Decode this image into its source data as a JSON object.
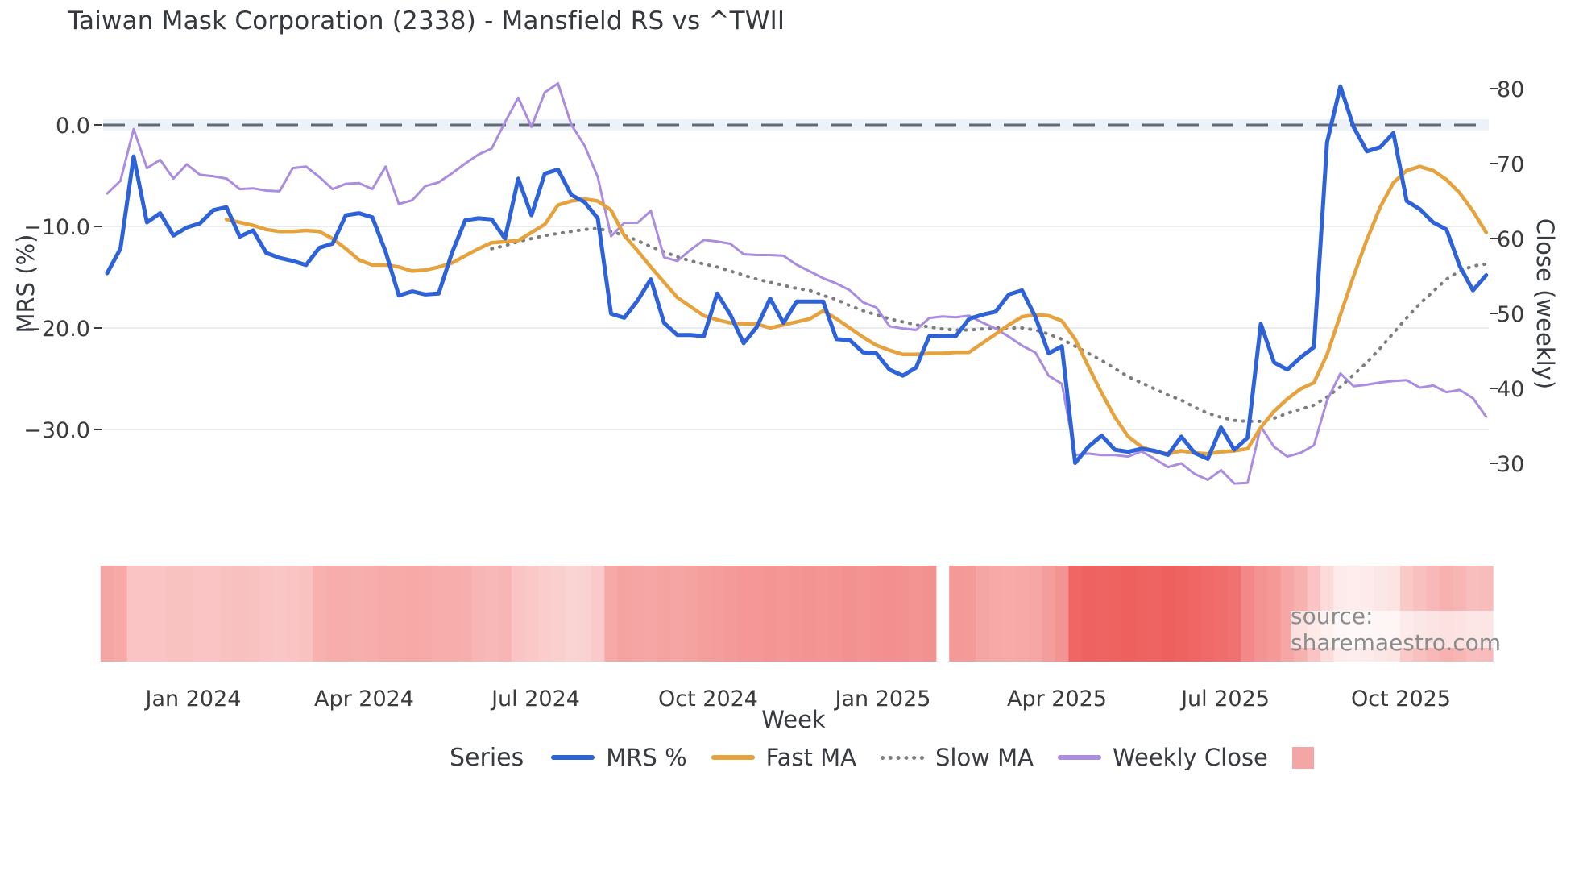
{
  "title": "Taiwan Mask Corporation (2338) - Mansfield RS vs ^TWII",
  "watermark": "source: sharemaestro.com",
  "legend": {
    "label": "Series",
    "items": [
      {
        "name": "MRS %",
        "style": "solid",
        "color": "#2e62d8"
      },
      {
        "name": "Fast MA",
        "style": "solid",
        "color": "#e6a23c"
      },
      {
        "name": "Slow MA",
        "style": "dotted",
        "color": "#7d7d7d"
      },
      {
        "name": "Weekly Close",
        "style": "solid",
        "color": "#aa8ce0"
      },
      {
        "name": "",
        "style": "square",
        "color": "#f4a6a6"
      }
    ]
  },
  "chart_data": {
    "type": "line",
    "title": "Taiwan Mask Corporation (2338) - Mansfield RS vs ^TWII",
    "xlabel": "Week",
    "x_ticks": [
      {
        "label": "Jan 2024",
        "week": 6.5
      },
      {
        "label": "Apr 2024",
        "week": 19.4
      },
      {
        "label": "Jul 2024",
        "week": 32.3
      },
      {
        "label": "Oct 2024",
        "week": 45.3
      },
      {
        "label": "Jan 2025",
        "week": 58.5
      },
      {
        "label": "Apr 2025",
        "week": 71.6
      },
      {
        "label": "Jul 2025",
        "week": 84.3
      },
      {
        "label": "Oct 2025",
        "week": 97.6
      }
    ],
    "y_left": {
      "label": "MRS (%)",
      "tick_values": [
        0,
        -10,
        -20,
        -30
      ],
      "tick_labels": [
        "0.0",
        "−10.0",
        "−20.0",
        "−30.0"
      ],
      "range": [
        -36,
        4.5
      ]
    },
    "y_right": {
      "label": "Close (weekly)",
      "tick_values": [
        80,
        70,
        60,
        50,
        40,
        30
      ],
      "tick_labels": [
        "80",
        "70",
        "60",
        "50",
        "40",
        "30"
      ],
      "range": [
        26,
        82
      ]
    },
    "zero_line": 0.0,
    "grid": true,
    "legend_position": "bottom",
    "series": [
      {
        "name": "MRS %",
        "axis": "left",
        "color": "#2e62d8",
        "style": "solid",
        "values": [
          -14.6,
          -12.2,
          -3.1,
          -9.6,
          -8.7,
          -10.9,
          -10.1,
          -9.7,
          -8.4,
          -8.1,
          -11.0,
          -10.4,
          -12.6,
          -13.1,
          -13.4,
          -13.8,
          -12.1,
          -11.7,
          -8.9,
          -8.7,
          -9.1,
          -12.5,
          -16.8,
          -16.4,
          -16.7,
          -16.6,
          -12.6,
          -9.4,
          -9.2,
          -9.3,
          -11.2,
          -5.3,
          -8.9,
          -4.8,
          -4.4,
          -6.9,
          -7.6,
          -9.2,
          -18.6,
          -19.0,
          -17.3,
          -15.2,
          -19.5,
          -20.7,
          -20.7,
          -20.8,
          -16.6,
          -18.7,
          -21.5,
          -19.9,
          -17.1,
          -19.5,
          -17.4,
          -17.4,
          -17.4,
          -21.1,
          -21.2,
          -22.4,
          -22.5,
          -24.1,
          -24.7,
          -23.9,
          -20.8,
          -20.8,
          -20.8,
          -19.1,
          -18.7,
          -18.4,
          -16.7,
          -16.3,
          -18.9,
          -22.5,
          -21.8,
          -33.3,
          -31.7,
          -30.6,
          -32.0,
          -32.2,
          -31.9,
          -32.1,
          -32.5,
          -30.7,
          -32.3,
          -32.9,
          -29.8,
          -32.0,
          -30.8,
          -19.6,
          -23.4,
          -24.1,
          -22.9,
          -21.9,
          -1.7,
          3.8,
          -0.2,
          -2.6,
          -2.2,
          -0.8,
          -7.5,
          -8.3,
          -9.6,
          -10.3,
          -13.9,
          -16.3,
          -14.8
        ]
      },
      {
        "name": "Fast MA",
        "axis": "left",
        "color": "#e6a23c",
        "style": "solid",
        "values": [
          null,
          null,
          null,
          null,
          null,
          null,
          null,
          null,
          null,
          -9.3,
          -9.6,
          -9.9,
          -10.3,
          -10.5,
          -10.5,
          -10.4,
          -10.5,
          -11.2,
          -12.2,
          -13.3,
          -13.8,
          -13.8,
          -14.0,
          -14.4,
          -14.3,
          -14.0,
          -13.6,
          -12.9,
          -12.2,
          -11.6,
          -11.5,
          -11.4,
          -10.6,
          -9.8,
          -7.9,
          -7.5,
          -7.3,
          -7.5,
          -8.4,
          -10.9,
          -12.4,
          -14.0,
          -15.5,
          -17.0,
          -17.9,
          -18.8,
          -19.2,
          -19.5,
          -19.6,
          -19.6,
          -20.0,
          -19.7,
          -19.4,
          -19.1,
          -18.3,
          -19.1,
          -20.0,
          -20.9,
          -21.7,
          -22.2,
          -22.6,
          -22.6,
          -22.5,
          -22.5,
          -22.4,
          -22.4,
          -21.5,
          -20.6,
          -19.7,
          -18.9,
          -18.7,
          -18.8,
          -19.3,
          -21.1,
          -23.8,
          -26.4,
          -28.8,
          -30.7,
          -31.7,
          -32.2,
          -32.4,
          -32.1,
          -32.3,
          -32.4,
          -32.2,
          -32.1,
          -31.9,
          -29.8,
          -28.2,
          -27.0,
          -26.0,
          -25.4,
          -22.6,
          -18.7,
          -14.9,
          -11.3,
          -8.1,
          -5.7,
          -4.5,
          -4.1,
          -4.5,
          -5.4,
          -6.7,
          -8.5,
          -10.6
        ]
      },
      {
        "name": "Slow MA",
        "axis": "left",
        "color": "#7d7d7d",
        "style": "dotted",
        "values": [
          null,
          null,
          null,
          null,
          null,
          null,
          null,
          null,
          null,
          null,
          null,
          null,
          null,
          null,
          null,
          null,
          null,
          null,
          null,
          null,
          null,
          null,
          null,
          null,
          null,
          null,
          null,
          null,
          null,
          -12.2,
          -11.9,
          -11.5,
          -11.2,
          -10.9,
          -10.7,
          -10.5,
          -10.3,
          -10.2,
          -10.5,
          -10.9,
          -11.4,
          -12.0,
          -12.5,
          -13.0,
          -13.4,
          -13.7,
          -14.0,
          -14.4,
          -14.8,
          -15.2,
          -15.5,
          -15.8,
          -16.1,
          -16.3,
          -16.8,
          -17.2,
          -17.8,
          -18.3,
          -18.7,
          -19.1,
          -19.4,
          -19.7,
          -19.9,
          -20.1,
          -20.2,
          -20.2,
          -20.1,
          -20.0,
          -20.0,
          -20.0,
          -20.2,
          -20.6,
          -21.1,
          -21.8,
          -22.5,
          -23.2,
          -24.0,
          -24.8,
          -25.4,
          -26.0,
          -26.6,
          -27.1,
          -27.8,
          -28.4,
          -28.8,
          -29.1,
          -29.2,
          -29.2,
          -28.9,
          -28.4,
          -28.0,
          -27.6,
          -26.8,
          -25.8,
          -24.6,
          -23.4,
          -22.0,
          -20.5,
          -19.0,
          -17.6,
          -16.4,
          -15.2,
          -14.4,
          -13.9,
          -13.7
        ]
      },
      {
        "name": "Weekly Close",
        "axis": "right",
        "color": "#aa8ce0",
        "style": "solid",
        "values": [
          66.0,
          67.7,
          74.6,
          69.4,
          70.5,
          68.0,
          69.9,
          68.5,
          68.3,
          68.0,
          66.6,
          66.7,
          66.4,
          66.3,
          69.4,
          69.6,
          68.2,
          66.6,
          67.3,
          67.4,
          66.6,
          69.6,
          64.6,
          65.1,
          67.0,
          67.5,
          68.7,
          70.0,
          71.2,
          72.0,
          75.5,
          78.8,
          74.9,
          79.5,
          80.7,
          75.2,
          72.4,
          68.2,
          60.3,
          62.1,
          62.1,
          63.7,
          57.5,
          57.0,
          58.5,
          59.8,
          59.6,
          59.3,
          57.9,
          57.8,
          57.8,
          57.7,
          56.5,
          55.6,
          54.7,
          54.0,
          53.1,
          51.5,
          50.8,
          48.3,
          48.0,
          47.8,
          49.4,
          49.6,
          49.5,
          49.7,
          48.8,
          48.0,
          46.9,
          45.7,
          44.8,
          41.7,
          40.6,
          31.1,
          31.3,
          31.1,
          31.1,
          30.9,
          31.6,
          30.6,
          29.5,
          30.0,
          28.6,
          27.8,
          29.1,
          27.3,
          27.4,
          34.9,
          32.2,
          30.9,
          31.4,
          32.4,
          38.4,
          42.0,
          40.3,
          40.5,
          40.8,
          41.0,
          41.1,
          40.1,
          40.4,
          39.5,
          39.8,
          38.7,
          36.2
        ]
      }
    ],
    "heatmap": {
      "description": "weekly intensity strip under chart, 0=white 1=deep red, null=gap week",
      "deep_color": "#ea3b38",
      "values": [
        0.46,
        0.44,
        0.3,
        0.3,
        0.3,
        0.31,
        0.31,
        0.3,
        0.3,
        0.31,
        0.32,
        0.31,
        0.3,
        0.29,
        0.3,
        0.31,
        0.4,
        0.42,
        0.42,
        0.41,
        0.42,
        0.43,
        0.43,
        0.44,
        0.43,
        0.42,
        0.42,
        0.41,
        0.38,
        0.36,
        0.37,
        0.3,
        0.28,
        0.26,
        0.24,
        0.22,
        0.23,
        0.27,
        0.44,
        0.47,
        0.46,
        0.45,
        0.47,
        0.46,
        0.47,
        0.49,
        0.5,
        0.51,
        0.53,
        0.53,
        0.54,
        0.53,
        0.54,
        0.55,
        0.54,
        0.55,
        0.56,
        0.55,
        0.56,
        0.57,
        0.56,
        0.55,
        0.56,
        null,
        0.52,
        0.51,
        0.46,
        0.44,
        0.43,
        0.44,
        0.45,
        0.5,
        0.55,
        0.78,
        0.8,
        0.79,
        0.8,
        0.81,
        0.8,
        0.79,
        0.81,
        0.8,
        0.78,
        0.76,
        0.74,
        0.72,
        0.6,
        0.55,
        0.52,
        0.45,
        0.4,
        0.3,
        0.18,
        0.1,
        0.09,
        0.1,
        0.12,
        0.14,
        0.28,
        0.32,
        0.36,
        0.4,
        0.38,
        0.33,
        0.34
      ]
    }
  }
}
